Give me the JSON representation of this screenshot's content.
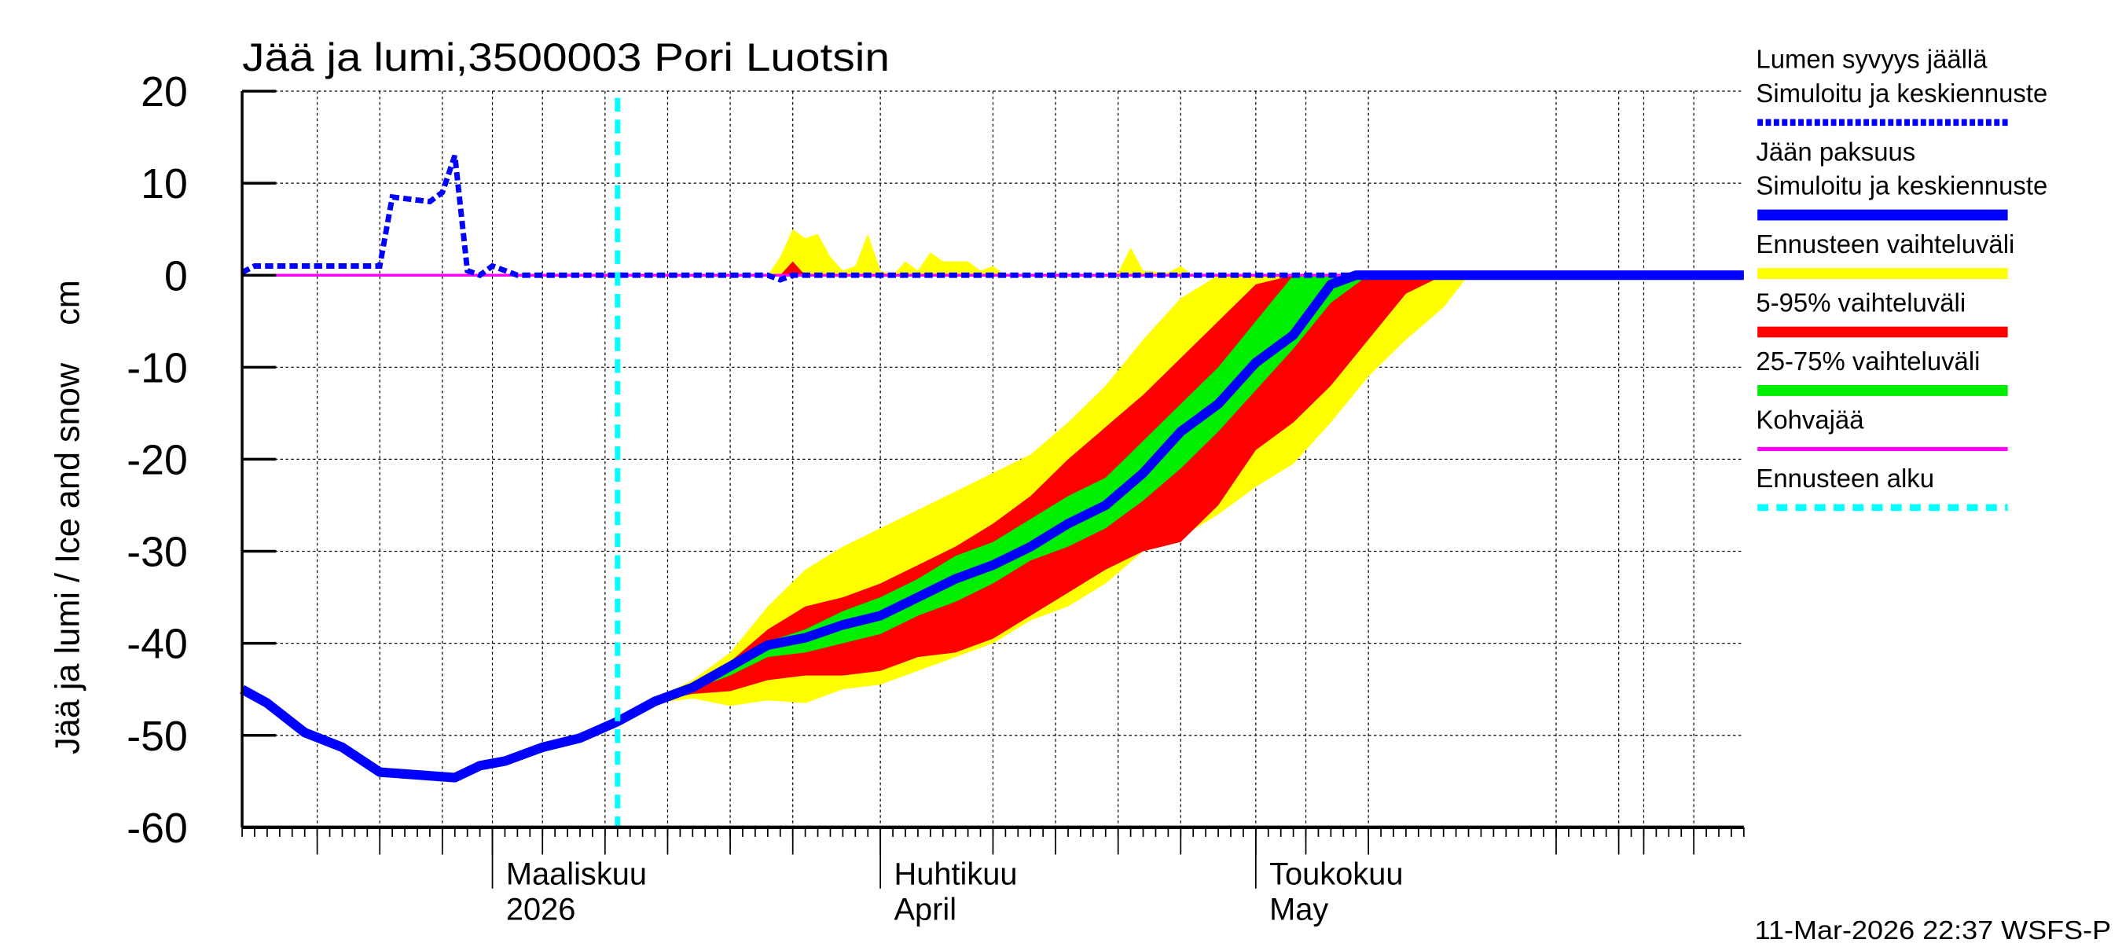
{
  "chart_data": {
    "type": "area",
    "title": "Jää ja lumi,3500003 Pori Luotsin",
    "ylabel": "Jää ja lumi / Ice and snow    cm",
    "ylim": [
      -60,
      20
    ],
    "xlim": [
      "2026-02-09",
      "2026-06-09"
    ],
    "yticks": [
      "20",
      "10",
      "0",
      "-10",
      "-20",
      "-30",
      "-40",
      "-50",
      "-60"
    ],
    "ytick_values": [
      20,
      10,
      0,
      -10,
      -20,
      -30,
      -40,
      -50,
      -60
    ],
    "grid": true,
    "grid_dates": [
      "2026-02-15",
      "2026-02-20",
      "2026-02-25",
      "2026-03-01",
      "2026-03-05",
      "2026-03-10",
      "2026-03-15",
      "2026-03-20",
      "2026-03-25",
      "2026-04-01",
      "2026-04-10",
      "2026-04-15",
      "2026-04-20",
      "2026-04-25",
      "2026-05-01",
      "2026-05-05",
      "2026-05-10",
      "2026-05-25",
      "2026-05-30",
      "2026-06-01",
      "2026-06-05"
    ],
    "month_labels": [
      {
        "date": "2026-03-01",
        "line1": "Maaliskuu",
        "line2": "2026"
      },
      {
        "date": "2026-04-01",
        "line1": "Huhtikuu",
        "line2": "April"
      },
      {
        "date": "2026-05-01",
        "line1": "Toukokuu",
        "line2": "May"
      }
    ],
    "forecast_start": "2026-03-11",
    "legend_placement": "right",
    "colors": {
      "snow": "#0000ff",
      "ice": "#0000ff",
      "range": "#ffff00",
      "p5_95": "#ff0000",
      "p25_75": "#00ee00",
      "kohva": "#ff00ff",
      "forecast_start": "#00ffff"
    },
    "legend": [
      {
        "line1": "Lumen syvyys jäällä",
        "line2": "Simuloitu ja keskiennuste",
        "style": "dashed-blue"
      },
      {
        "line1": "Jään paksuus",
        "line2": "Simuloitu ja keskiennuste",
        "style": "solid-blue"
      },
      {
        "line1": "Ennusteen vaihteluväli",
        "style": "yellow"
      },
      {
        "line1": "5-95% vaihteluväli",
        "style": "red"
      },
      {
        "line1": "25-75% vaihteluväli",
        "style": "green"
      },
      {
        "line1": "Kohvajää",
        "style": "magenta"
      },
      {
        "line1": "Ennusteen alku",
        "style": "dashed-cyan"
      }
    ],
    "band_dates": [
      "2026-03-14",
      "2026-03-17",
      "2026-03-20",
      "2026-03-23",
      "2026-03-26",
      "2026-03-29",
      "2026-04-01",
      "2026-04-04",
      "2026-04-07",
      "2026-04-10",
      "2026-04-13",
      "2026-04-16",
      "2026-04-19",
      "2026-04-22",
      "2026-04-25",
      "2026-04-28",
      "2026-05-01",
      "2026-05-04",
      "2026-05-07",
      "2026-05-10",
      "2026-05-13",
      "2026-05-16",
      "2026-05-18"
    ],
    "range_upper": [
      -46,
      -44,
      -41,
      -36,
      -32,
      -29.5,
      -27.5,
      -25.5,
      -23.5,
      -21.5,
      -19.5,
      -16,
      -12,
      -7,
      -2.5,
      0,
      0,
      0,
      0,
      0,
      0,
      0,
      0
    ],
    "range_lower": [
      -46.5,
      -46,
      -46.8,
      -46.2,
      -46.5,
      -45,
      -44.5,
      -43,
      -41.5,
      -40,
      -37.5,
      -36,
      -33.5,
      -30,
      -28.5,
      -26,
      -23,
      -20.5,
      -16,
      -11,
      -7,
      -3.5,
      0
    ],
    "p95_upper": [
      -46.2,
      -44.5,
      -42,
      -38.5,
      -36,
      -35,
      -33.5,
      -31.5,
      -29.5,
      -27,
      -24,
      -20,
      -16.5,
      -13,
      -9,
      -5,
      -1,
      0,
      0,
      0,
      0,
      0,
      0
    ],
    "p5_lower": [
      -46.3,
      -45.5,
      -45.2,
      -44,
      -43.5,
      -43.5,
      -43,
      -41.5,
      -41,
      -39.5,
      -37,
      -34.5,
      -32,
      -30,
      -29,
      -25,
      -19,
      -16,
      -12,
      -7,
      -2,
      0,
      0
    ],
    "p75_upper": [
      -46.2,
      -44.5,
      -42,
      -39.8,
      -38.5,
      -36.5,
      -35,
      -33,
      -30.5,
      -29,
      -26.5,
      -24,
      -22,
      -18,
      -14,
      -10,
      -5,
      0,
      0,
      0,
      0,
      0,
      0
    ],
    "p25_lower": [
      -46.3,
      -45,
      -43.5,
      -41.5,
      -41,
      -40,
      -39,
      -37,
      -35.5,
      -33.5,
      -31,
      -29.5,
      -27.5,
      -24.5,
      -21,
      -17,
      -12.5,
      -8,
      -3,
      0,
      0,
      0,
      0
    ],
    "snow_range": {
      "dates": [
        "2026-03-23",
        "2026-03-24",
        "2026-03-25",
        "2026-03-26",
        "2026-03-27",
        "2026-03-28",
        "2026-03-29",
        "2026-03-30",
        "2026-03-31",
        "2026-04-01",
        "2026-04-02",
        "2026-04-03",
        "2026-04-04",
        "2026-04-05",
        "2026-04-06",
        "2026-04-07",
        "2026-04-08",
        "2026-04-09",
        "2026-04-10",
        "2026-04-11",
        "2026-04-19",
        "2026-04-20",
        "2026-04-21",
        "2026-04-22",
        "2026-04-24",
        "2026-04-25",
        "2026-04-26"
      ],
      "values": [
        0,
        2,
        5,
        4,
        4.5,
        2,
        0.5,
        1,
        4.5,
        0.5,
        0,
        1.5,
        0.5,
        2.5,
        1.5,
        1.5,
        1.5,
        0.5,
        1,
        0,
        0,
        0.3,
        3,
        0.5,
        0.3,
        1,
        0
      ]
    },
    "snow_p95": {
      "dates": [
        "2026-03-24",
        "2026-03-25",
        "2026-03-26"
      ],
      "values": [
        0,
        1.5,
        0
      ]
    },
    "ice": {
      "dates": [
        "2026-02-09",
        "2026-02-11",
        "2026-02-14",
        "2026-02-17",
        "2026-02-20",
        "2026-02-23",
        "2026-02-26",
        "2026-02-28",
        "2026-03-02",
        "2026-03-05",
        "2026-03-08",
        "2026-03-11",
        "2026-03-14",
        "2026-03-17",
        "2026-03-20",
        "2026-03-23",
        "2026-03-26",
        "2026-03-29",
        "2026-04-01",
        "2026-04-04",
        "2026-04-07",
        "2026-04-10",
        "2026-04-13",
        "2026-04-16",
        "2026-04-19",
        "2026-04-22",
        "2026-04-25",
        "2026-04-28",
        "2026-05-01",
        "2026-05-04",
        "2026-05-07",
        "2026-05-09",
        "2026-06-09"
      ],
      "values": [
        -45,
        -46.5,
        -49.7,
        -51.3,
        -54,
        -54.3,
        -54.6,
        -53.3,
        -52.8,
        -51.3,
        -50.3,
        -48.5,
        -46.3,
        -44.8,
        -42.5,
        -40.2,
        -39.4,
        -38,
        -37,
        -35,
        -33,
        -31.5,
        -29.5,
        -27,
        -25,
        -21.5,
        -17,
        -14,
        -9.5,
        -6.5,
        -1,
        0,
        0
      ]
    },
    "snow": {
      "dates": [
        "2026-02-09",
        "2026-02-10",
        "2026-02-20",
        "2026-02-21",
        "2026-02-24",
        "2026-02-25",
        "2026-02-26",
        "2026-02-27",
        "2026-02-28",
        "2026-03-01",
        "2026-03-03",
        "2026-03-23",
        "2026-03-24",
        "2026-03-25",
        "2026-06-09"
      ],
      "values": [
        0.3,
        1,
        1,
        8.5,
        8,
        9,
        13,
        0.5,
        0,
        1,
        0,
        0,
        -0.5,
        0,
        0
      ]
    },
    "kohva": {
      "dates": [
        "2026-02-09",
        "2026-06-09"
      ],
      "values": [
        0,
        0
      ]
    },
    "timestamp": "11-Mar-2026 22:37 WSFS-P"
  }
}
